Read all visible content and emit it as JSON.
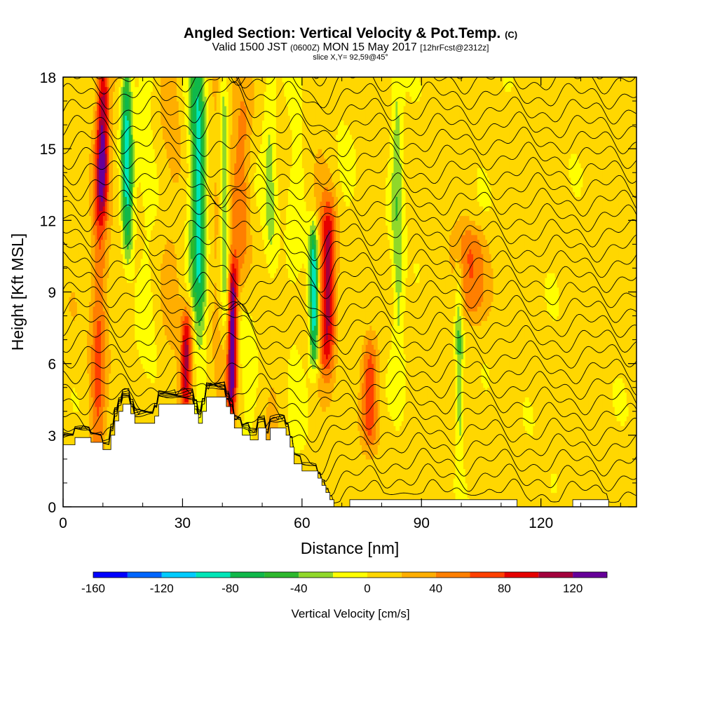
{
  "header": {
    "title_main": "Angled Section: Vertical Velocity & Pot.Temp.",
    "title_unit": "(C)",
    "valid_a": "Valid 1500 JST",
    "valid_z": "(0600Z)",
    "valid_b": "MON 15 May 2017",
    "valid_fcst": "[12hrFcst@2312z]",
    "slice": "slice X,Y= 92,59@45°"
  },
  "chart_data": {
    "type": "heatmap",
    "xlabel": "Distance [nm]",
    "ylabel": "Height [Kft MSL]",
    "xlim": [
      0,
      144
    ],
    "ylim": [
      0,
      18
    ],
    "x_ticks": [
      "0",
      "30",
      "60",
      "90",
      "120"
    ],
    "x_tick_values": [
      0,
      30,
      60,
      90,
      120
    ],
    "y_ticks": [
      "0",
      "3",
      "6",
      "9",
      "12",
      "15",
      "18"
    ],
    "y_tick_values": [
      0,
      3,
      6,
      9,
      12,
      15,
      18
    ],
    "colorbar": {
      "label": "Vertical Velocity [cm/s]",
      "range": [
        -160,
        140
      ],
      "tick_values": [
        -160,
        -120,
        -80,
        -40,
        0,
        40,
        80,
        120
      ],
      "tick_labels": [
        "-160",
        "-120",
        "-80",
        "-40",
        "0",
        "40",
        "80",
        "120"
      ],
      "colors": [
        "#0000ff",
        "#0066ff",
        "#00ccff",
        "#00e6b8",
        "#10b84a",
        "#2db82d",
        "#90d82a",
        "#ffff00",
        "#ffd700",
        "#ffae00",
        "#ff7f00",
        "#ff4000",
        "#e60000",
        "#a3003c",
        "#660099"
      ]
    },
    "terrain_kft": [
      [
        0,
        2.6
      ],
      [
        3,
        2.6
      ],
      [
        3,
        2.9
      ],
      [
        7,
        2.9
      ],
      [
        7,
        2.7
      ],
      [
        10,
        2.7
      ],
      [
        10,
        2.4
      ],
      [
        12,
        2.4
      ],
      [
        12,
        3.0
      ],
      [
        13,
        3.0
      ],
      [
        13,
        3.6
      ],
      [
        14,
        3.6
      ],
      [
        14,
        4.0
      ],
      [
        15,
        4.0
      ],
      [
        15,
        4.3
      ],
      [
        17,
        4.3
      ],
      [
        17,
        3.9
      ],
      [
        18,
        3.9
      ],
      [
        18,
        3.5
      ],
      [
        23,
        3.5
      ],
      [
        23,
        3.8
      ],
      [
        24,
        3.8
      ],
      [
        24,
        4.3
      ],
      [
        33,
        4.3
      ],
      [
        33,
        3.9
      ],
      [
        34,
        3.9
      ],
      [
        34,
        3.5
      ],
      [
        35,
        3.5
      ],
      [
        35,
        4.0
      ],
      [
        36,
        4.0
      ],
      [
        36,
        4.6
      ],
      [
        41,
        4.6
      ],
      [
        41,
        4.2
      ],
      [
        42,
        4.2
      ],
      [
        42,
        3.9
      ],
      [
        43,
        3.9
      ],
      [
        43,
        3.3
      ],
      [
        45,
        3.3
      ],
      [
        45,
        3.0
      ],
      [
        47,
        3.0
      ],
      [
        47,
        2.8
      ],
      [
        49,
        2.8
      ],
      [
        49,
        3.3
      ],
      [
        51,
        3.3
      ],
      [
        51,
        2.8
      ],
      [
        52,
        2.8
      ],
      [
        52,
        3.3
      ],
      [
        56,
        3.3
      ],
      [
        56,
        3.0
      ],
      [
        57,
        3.0
      ],
      [
        57,
        2.5
      ],
      [
        58,
        2.5
      ],
      [
        58,
        1.8
      ],
      [
        60,
        1.8
      ],
      [
        60,
        1.5
      ],
      [
        64,
        1.5
      ],
      [
        64,
        1.2
      ],
      [
        65,
        1.2
      ],
      [
        65,
        0.9
      ],
      [
        66,
        0.9
      ],
      [
        66,
        0.6
      ],
      [
        67,
        0.6
      ],
      [
        67,
        0.3
      ],
      [
        68,
        0.3
      ],
      [
        68,
        0.0
      ],
      [
        72,
        0.0
      ],
      [
        72,
        0.3
      ],
      [
        114,
        0.3
      ],
      [
        114,
        0.0
      ],
      [
        128,
        0.0
      ],
      [
        128,
        0.3
      ],
      [
        137,
        0.3
      ],
      [
        137,
        0.0
      ],
      [
        144,
        0.0
      ]
    ],
    "terrain_base_kft": 0,
    "updraft_columns": [
      {
        "x": 9,
        "w": 2.0,
        "y0": 0,
        "y1": 18,
        "v": 60
      },
      {
        "x": 31,
        "w": 1.5,
        "y0": 4.5,
        "y1": 7.6,
        "v": 100
      },
      {
        "x": 42.5,
        "w": 1.2,
        "y0": 4.6,
        "y1": 9.5,
        "v": 130
      },
      {
        "x": 45,
        "w": 2.5,
        "y0": 9.5,
        "y1": 18,
        "v": 60
      },
      {
        "x": 66.5,
        "w": 2.0,
        "y0": 6.5,
        "y1": 12,
        "v": 100
      },
      {
        "x": 10,
        "w": 1.5,
        "y0": 13,
        "y1": 18,
        "v": 80
      },
      {
        "x": 77,
        "w": 2.0,
        "y0": 3.3,
        "y1": 6.5,
        "v": 60
      },
      {
        "x": 102,
        "w": 4.0,
        "y0": 8.5,
        "y1": 11,
        "v": 50
      }
    ],
    "downdraft_columns": [
      {
        "x": 16,
        "w": 1.5,
        "y0": 11,
        "y1": 18,
        "v": -100
      },
      {
        "x": 34,
        "w": 1.8,
        "y0": 8,
        "y1": 18,
        "v": -80
      },
      {
        "x": 40.5,
        "w": 1.2,
        "y0": 8,
        "y1": 18,
        "v": -60
      },
      {
        "x": 63,
        "w": 1.2,
        "y0": 6.5,
        "y1": 11,
        "v": -110
      },
      {
        "x": 52,
        "w": 2.0,
        "y0": 10,
        "y1": 18,
        "v": -50
      },
      {
        "x": 99.5,
        "w": 1.0,
        "y0": 3,
        "y1": 9.5,
        "v": -50
      },
      {
        "x": 84,
        "w": 1.5,
        "y0": 6,
        "y1": 18,
        "v": -40
      }
    ]
  }
}
